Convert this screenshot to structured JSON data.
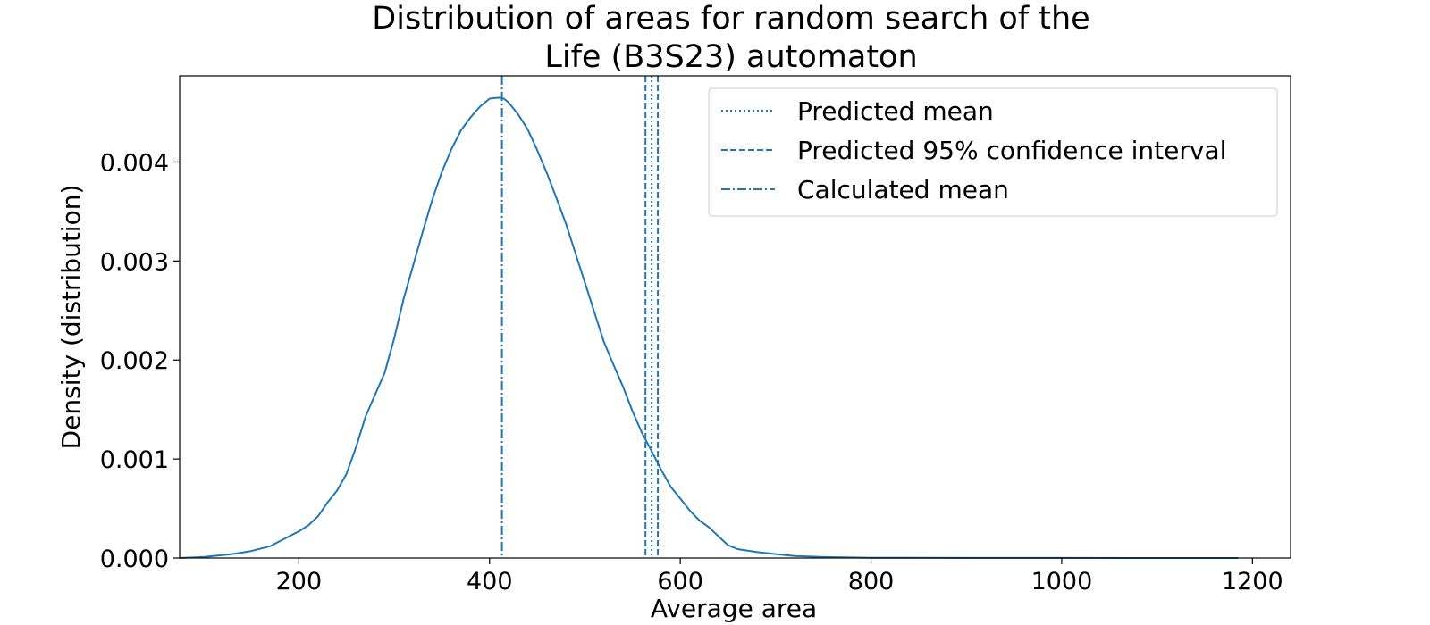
{
  "chart_data": {
    "type": "line",
    "title_lines": [
      "Distribution of areas for random search of the",
      "Life (B3S23) automaton"
    ],
    "xlabel": "Average area",
    "ylabel": "Density (distribution)",
    "xlim": [
      75,
      1240
    ],
    "ylim": [
      0,
      0.00487
    ],
    "x_ticks": [
      200,
      400,
      600,
      800,
      1000,
      1200
    ],
    "x_tick_labels": [
      "200",
      "400",
      "600",
      "800",
      "1000",
      "1200"
    ],
    "y_ticks": [
      0,
      0.001,
      0.002,
      0.003,
      0.004
    ],
    "y_tick_labels": [
      "0.000",
      "0.001",
      "0.002",
      "0.003",
      "0.004"
    ],
    "grid": false,
    "legend_position": "top-right",
    "color": "#1f77b4",
    "series": [
      {
        "x": [
          75,
          100,
          130,
          150,
          170,
          180,
          190,
          200,
          210,
          220,
          230,
          240,
          250,
          260,
          270,
          280,
          290,
          300,
          310,
          320,
          330,
          340,
          350,
          360,
          370,
          380,
          390,
          400,
          410,
          415,
          420,
          430,
          440,
          450,
          460,
          470,
          480,
          490,
          500,
          510,
          520,
          530,
          540,
          550,
          560,
          570,
          580,
          590,
          600,
          610,
          620,
          630,
          640,
          650,
          660,
          680,
          700,
          720,
          750,
          800,
          900,
          1000,
          1100,
          1185
        ],
        "y": [
          0,
          1e-05,
          4e-05,
          7e-05,
          0.00012,
          0.00017,
          0.00022,
          0.00027,
          0.00033,
          0.00042,
          0.00056,
          0.00068,
          0.00085,
          0.00112,
          0.00143,
          0.00165,
          0.00187,
          0.00222,
          0.00262,
          0.00296,
          0.0033,
          0.00362,
          0.0039,
          0.00413,
          0.00432,
          0.00445,
          0.00456,
          0.00464,
          0.00465,
          0.00464,
          0.0046,
          0.00448,
          0.00433,
          0.00412,
          0.00389,
          0.00364,
          0.00338,
          0.00308,
          0.00278,
          0.00248,
          0.00218,
          0.00195,
          0.00173,
          0.00148,
          0.00126,
          0.00108,
          0.00089,
          0.00072,
          0.0006,
          0.00048,
          0.00038,
          0.00031,
          0.00022,
          0.00013,
          9e-05,
          6e-05,
          4e-05,
          2e-05,
          1e-05,
          3e-06,
          1e-06,
          1e-06,
          0,
          0
        ]
      }
    ],
    "vlines": [
      {
        "name": "Predicted mean",
        "x": 570,
        "style": "dotted"
      },
      {
        "name": "Predicted 95% confidence interval",
        "x": 563.5,
        "style": "dashed"
      },
      {
        "name": "Predicted 95% confidence interval",
        "x": 576.5,
        "style": "dashed"
      },
      {
        "name": "Calculated mean",
        "x": 413,
        "style": "dashdot"
      }
    ],
    "legend": [
      {
        "label": "Predicted mean",
        "style": "dotted"
      },
      {
        "label": "Predicted 95% confidence interval",
        "style": "dashed"
      },
      {
        "label": "Calculated mean",
        "style": "dashdot"
      }
    ]
  }
}
